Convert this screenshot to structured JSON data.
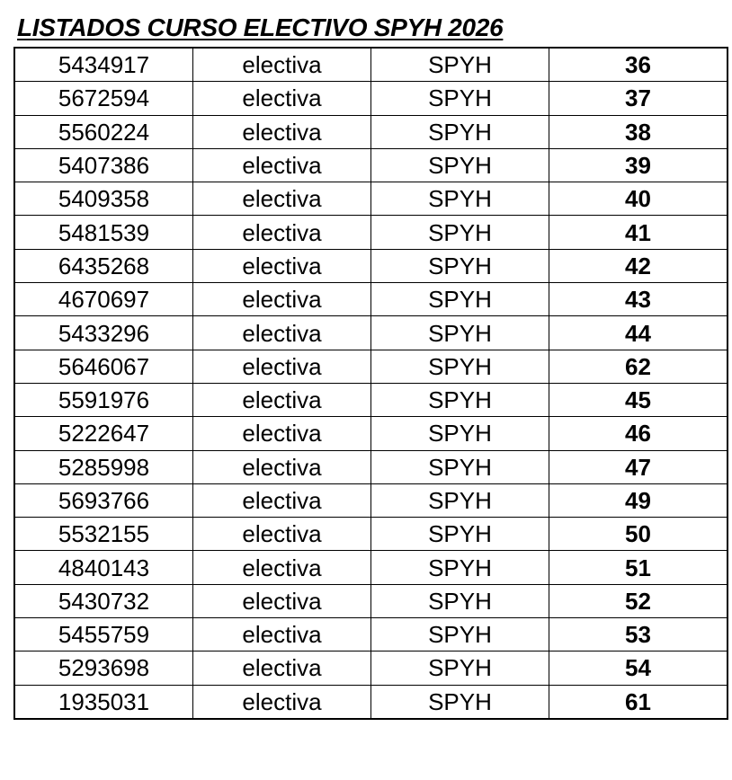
{
  "title": "LISTADOS CURSO ELECTIVO SPYH 2026",
  "rows": [
    [
      "5434917",
      "electiva",
      "SPYH",
      "36"
    ],
    [
      "5672594",
      "electiva",
      "SPYH",
      "37"
    ],
    [
      "5560224",
      "electiva",
      "SPYH",
      "38"
    ],
    [
      "5407386",
      "electiva",
      "SPYH",
      "39"
    ],
    [
      "5409358",
      "electiva",
      "SPYH",
      "40"
    ],
    [
      "5481539",
      "electiva",
      "SPYH",
      "41"
    ],
    [
      "6435268",
      "electiva",
      "SPYH",
      "42"
    ],
    [
      "4670697",
      "electiva",
      "SPYH",
      "43"
    ],
    [
      "5433296",
      "electiva",
      "SPYH",
      "44"
    ],
    [
      "5646067",
      "electiva",
      "SPYH",
      "62"
    ],
    [
      "5591976",
      "electiva",
      "SPYH",
      "45"
    ],
    [
      "5222647",
      "electiva",
      "SPYH",
      "46"
    ],
    [
      "5285998",
      "electiva",
      "SPYH",
      "47"
    ],
    [
      "5693766",
      "electiva",
      "SPYH",
      "49"
    ],
    [
      "5532155",
      "electiva",
      "SPYH",
      "50"
    ],
    [
      "4840143",
      "electiva",
      "SPYH",
      "51"
    ],
    [
      "5430732",
      "electiva",
      "SPYH",
      "52"
    ],
    [
      "5455759",
      "electiva",
      "SPYH",
      "53"
    ],
    [
      "5293698",
      "electiva",
      "SPYH",
      "54"
    ],
    [
      "1935031",
      "electiva",
      "SPYH",
      "61"
    ]
  ]
}
